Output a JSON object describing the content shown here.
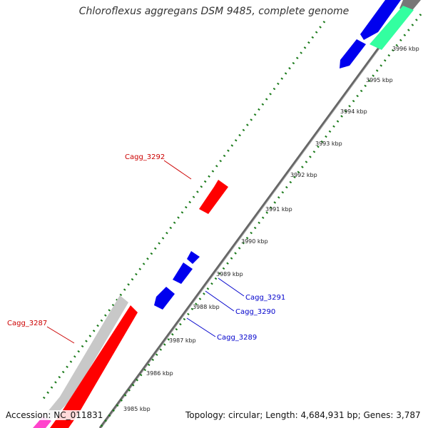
{
  "title": "Chloroflexus aggregans DSM 9485, complete genome",
  "footer": {
    "accession": "Accession: NC_011831",
    "topology": "Topology: circular; Length: 4,684,931 bp; Genes: 3,787"
  },
  "colors": {
    "red_gene": "#ff0000",
    "blue_gene": "#0000ee",
    "teal_gene": "#33ffa0",
    "gray_gene": "#c8c8c8",
    "magenta_gene": "#ff44cc",
    "ticks": "#1a7a1a",
    "red_label": "#cc0000",
    "blue_label": "#0000cc"
  },
  "kbp_labels": [
    "3985 kbp",
    "3986 kbp",
    "3987 kbp",
    "3988 kbp",
    "3989 kbp",
    "3990 kbp",
    "3991 kbp",
    "3992 kbp",
    "3993 kbp",
    "3994 kbp",
    "3995 kbp",
    "3996 kbp"
  ],
  "gene_labels": {
    "cagg_3292": "Cagg_3292",
    "cagg_3287": "Cagg_3287",
    "cagg_3291": "Cagg_3291",
    "cagg_3290": "Cagg_3290",
    "cagg_3289": "Cagg_3289"
  }
}
